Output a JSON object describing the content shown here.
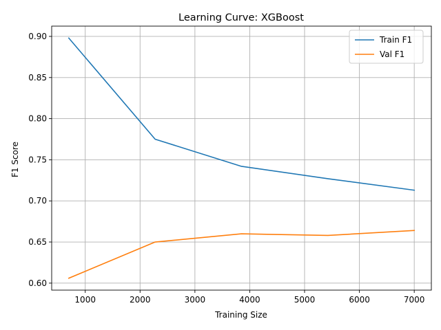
{
  "chart_data": {
    "type": "line",
    "title": "Learning Curve: XGBoost",
    "xlabel": "Training Size",
    "ylabel": "F1 Score",
    "xlim": [
      388,
      7312
    ],
    "ylim": [
      0.5915,
      0.9125
    ],
    "xticks": [
      1000,
      2000,
      3000,
      4000,
      5000,
      6000,
      7000
    ],
    "yticks": [
      0.6,
      0.65,
      0.7,
      0.75,
      0.8,
      0.85,
      0.9
    ],
    "grid": true,
    "legend_position": "top-right",
    "x": [
      700,
      2275,
      3850,
      5425,
      7000
    ],
    "series": [
      {
        "name": "Train F1",
        "color": "#1f77b4",
        "values": [
          0.898,
          0.775,
          0.742,
          0.727,
          0.713
        ]
      },
      {
        "name": "Val F1",
        "color": "#ff7f0e",
        "values": [
          0.606,
          0.65,
          0.66,
          0.658,
          0.664
        ]
      }
    ]
  }
}
